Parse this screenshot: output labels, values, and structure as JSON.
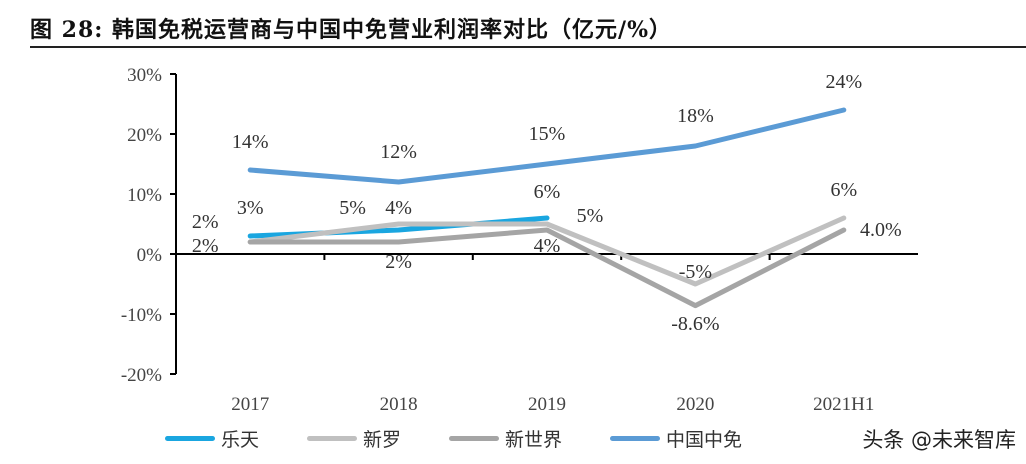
{
  "title": "图 28: 韩国免税运营商与中国中免营业利润率对比（亿元/%）",
  "watermark": "头条 @未来智库",
  "chart_data": {
    "type": "line",
    "title": "",
    "xlabel": "",
    "ylabel": "",
    "categories": [
      "2017",
      "2018",
      "2019",
      "2020",
      "2021H1"
    ],
    "ylim": [
      -20,
      30
    ],
    "yticks": [
      -20,
      -10,
      0,
      10,
      20,
      30
    ],
    "ytick_labels": [
      "-20%",
      "-10%",
      "0%",
      "10%",
      "20%",
      "30%"
    ],
    "grid": false,
    "legend": "bottom",
    "series": [
      {
        "name": "乐天",
        "color": "#1aa6e0",
        "values": [
          3,
          4,
          6,
          null,
          null
        ],
        "labels": [
          "3%",
          "4%",
          "6%",
          "",
          ""
        ]
      },
      {
        "name": "新罗",
        "color": "#c0c0c0",
        "values": [
          2,
          5,
          5,
          -5,
          6
        ],
        "labels": [
          "2%",
          "5%",
          "5%",
          "-5%",
          "6%"
        ]
      },
      {
        "name": "新世界",
        "color": "#a5a5a5",
        "values": [
          2,
          2,
          4,
          -8.6,
          4.0
        ],
        "labels": [
          "2%",
          "2%",
          "4%",
          "-8.6%",
          "4.0%"
        ]
      },
      {
        "name": "中国中免",
        "color": "#5b9bd5",
        "values": [
          14,
          12,
          15,
          18,
          24
        ],
        "labels": [
          "14%",
          "12%",
          "15%",
          "18%",
          "24%"
        ]
      }
    ]
  }
}
